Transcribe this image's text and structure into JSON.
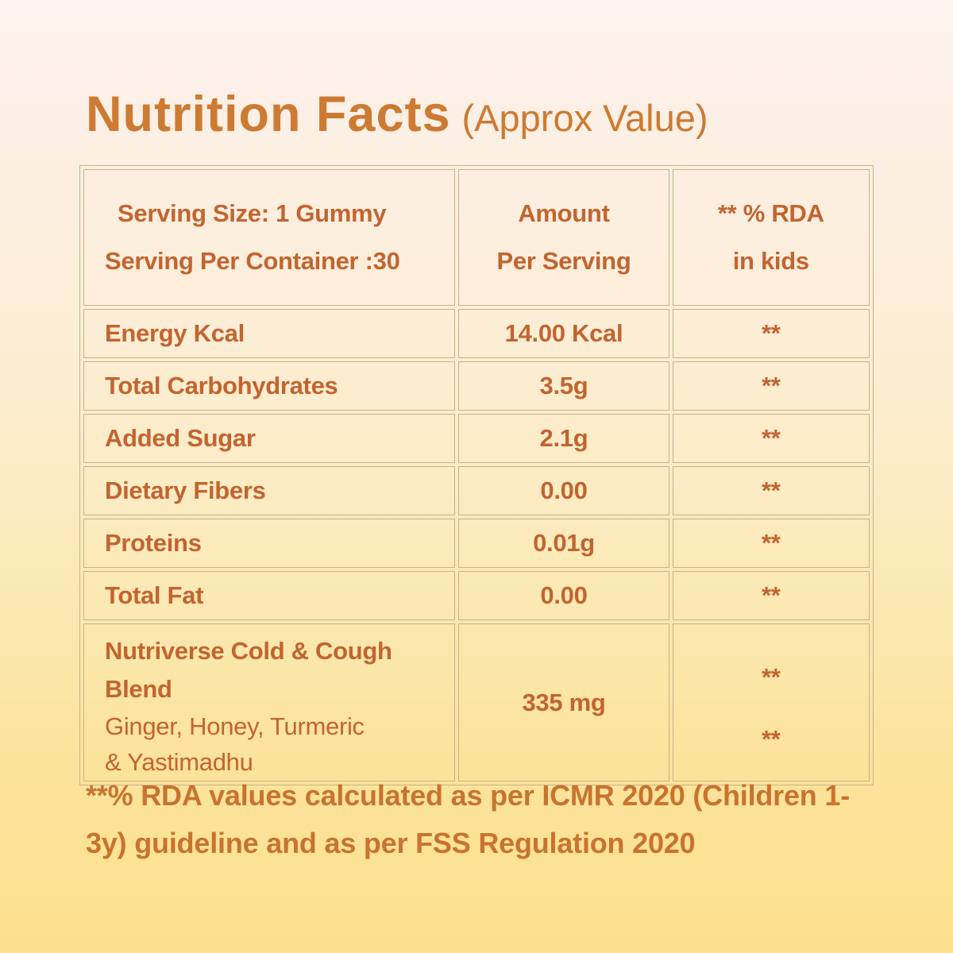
{
  "title": {
    "main": "Nutrition Facts",
    "suffix": "(Approx Value)"
  },
  "table": {
    "header": {
      "serving_line1": "Serving Size: 1 Gummy",
      "serving_line2": "Serving Per Container :30",
      "amount_line1": "Amount",
      "amount_line2": "Per Serving",
      "rda_line1": "** % RDA",
      "rda_line2": "in kids"
    },
    "rows": [
      {
        "label": "Energy Kcal",
        "amount": "14.00 Kcal",
        "rda": "**"
      },
      {
        "label": "Total Carbohydrates",
        "amount": "3.5g",
        "rda": "**"
      },
      {
        "label": "Added Sugar",
        "amount": "2.1g",
        "rda": "**"
      },
      {
        "label": "Dietary Fibers",
        "amount": "0.00",
        "rda": "**"
      },
      {
        "label": "Proteins",
        "amount": "0.01g",
        "rda": "**"
      },
      {
        "label": "Total Fat",
        "amount": "0.00",
        "rda": "**"
      }
    ],
    "blend_row": {
      "title": "Nutriverse Cold & Cough  Blend",
      "subtitle_line1": "Ginger, Honey, Turmeric",
      "subtitle_line2": "& Yastimadhu",
      "amount": "335 mg",
      "rda_star_1": "**",
      "rda_star_2": "**"
    }
  },
  "footnote": {
    "line1": "**% RDA values calculated as per ICMR 2020 (Children 1-",
    "line2": "3y) guideline and as per FSS Regulation 2020",
    "full_text": "**% RDA values calculated as per ICMR 2020 (Children 1-3y) guideline and as per FSS Regulation 2020"
  },
  "colors": {
    "title_orange": "#cd7a32",
    "table_text_orange": "#c2642f",
    "footnote_orange": "#c8732f",
    "table_border_tan": "#c9b189",
    "background_top": "#fdf2ee",
    "background_bottom": "#fbe18e"
  }
}
